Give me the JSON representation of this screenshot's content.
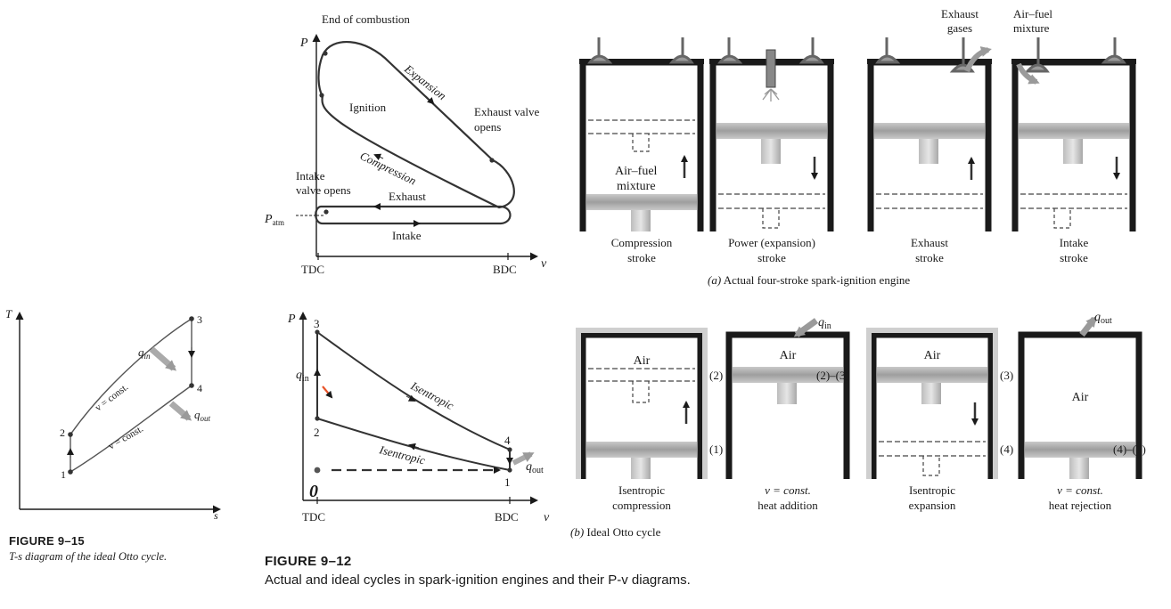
{
  "actual_pv": {
    "axis_p": "P",
    "axis_v": "v",
    "p_atm_main": "P",
    "p_atm_sub": "atm",
    "tdc": "TDC",
    "bdc": "BDC",
    "end_of_combustion": "End of combustion",
    "expansion": "Expansion",
    "ignition": "Ignition",
    "exhaust_valve_opens_1": "Exhaust valve",
    "exhaust_valve_opens_2": "opens",
    "compression": "Compression",
    "intake_valve_opens_1": "Intake",
    "intake_valve_opens_2": "valve opens",
    "exhaust": "Exhaust",
    "intake": "Intake"
  },
  "actual_engine": {
    "subtitle_a": "(a)",
    "subtitle": "Actual four-stroke spark-ignition engine",
    "mixture_label_1": "Air–fuel",
    "mixture_label_2": "mixture",
    "exhaust_gases_1": "Exhaust",
    "exhaust_gases_2": "gases",
    "airfuel_in_1": "Air–fuel",
    "airfuel_in_2": "mixture",
    "strokes": [
      {
        "line1": "Compression",
        "line2": "stroke"
      },
      {
        "line1": "Power (expansion)",
        "line2": "stroke"
      },
      {
        "line1": "Exhaust",
        "line2": "stroke"
      },
      {
        "line1": "Intake",
        "line2": "stroke"
      }
    ]
  },
  "ideal_pv": {
    "axis_p": "P",
    "axis_v": "v",
    "tdc": "TDC",
    "bdc": "BDC",
    "pt1": "1",
    "pt2": "2",
    "pt3": "3",
    "pt4": "4",
    "q_in": "q",
    "q_in_sub": "in",
    "q_out": "q",
    "q_out_sub": "out",
    "isentropic_upper": "Isentropic",
    "isentropic_lower": "Isentropic",
    "handwritten_zero": "0"
  },
  "ideal_engine": {
    "subtitle_b": "(b)",
    "subtitle": "Ideal Otto cycle",
    "air": "Air",
    "q_in": "q",
    "q_in_sub": "in",
    "q_out": "q",
    "q_out_sub": "out",
    "state_labels": [
      "(2)",
      "(1)",
      "(2)–(3)",
      "(3)",
      "(4)",
      "(4)–(1)"
    ],
    "processes": [
      {
        "line1": "Isentropic",
        "line2": "compression"
      },
      {
        "line1": "v = const.",
        "line2": "heat addition"
      },
      {
        "line1": "Isentropic",
        "line2": "expansion"
      },
      {
        "line1": "v = const.",
        "line2": "heat rejection"
      }
    ]
  },
  "ts_diagram": {
    "axis_t": "T",
    "axis_s": "s",
    "pt1": "1",
    "pt2": "2",
    "pt3": "3",
    "pt4": "4",
    "q_in": "q",
    "q_in_sub": "in",
    "q_out": "q",
    "q_out_sub": "out",
    "v_const_upper": "v = const.",
    "v_const_lower": "v = const."
  },
  "captions": {
    "fig_15_head": "FIGURE 9–15",
    "fig_15_body": "T-s diagram of the ideal Otto cycle.",
    "fig_12_head": "FIGURE 9–12",
    "fig_12_body": "Actual and ideal cycles in spark-ignition engines and their P-v diagrams."
  }
}
